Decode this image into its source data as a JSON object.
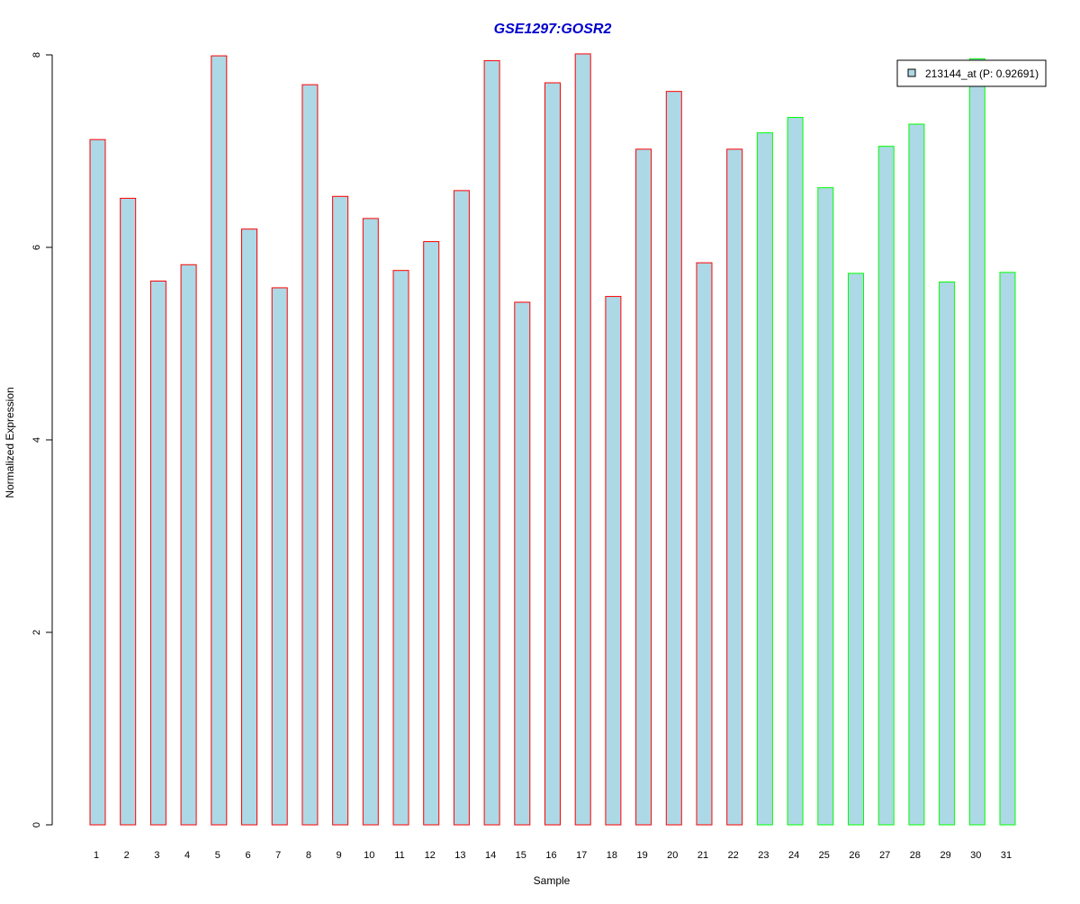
{
  "chart_data": {
    "type": "bar",
    "title": "GSE1297:GOSR2",
    "xlabel": "Sample",
    "ylabel": "Normalized Expression",
    "ylim": [
      0,
      8
    ],
    "yticks": [
      0,
      2,
      4,
      6,
      8
    ],
    "categories": [
      "1",
      "2",
      "3",
      "4",
      "5",
      "6",
      "7",
      "8",
      "9",
      "10",
      "11",
      "12",
      "13",
      "14",
      "15",
      "16",
      "17",
      "18",
      "19",
      "20",
      "21",
      "22",
      "23",
      "24",
      "25",
      "26",
      "27",
      "28",
      "29",
      "30",
      "31"
    ],
    "series": [
      {
        "name": "213144_at (P: 0.92691)",
        "values": [
          7.12,
          6.51,
          5.65,
          5.82,
          7.99,
          6.19,
          5.58,
          7.69,
          6.53,
          6.3,
          5.76,
          6.06,
          6.59,
          7.94,
          5.43,
          7.71,
          8.01,
          5.49,
          7.02,
          7.62,
          5.84,
          7.02,
          7.19,
          7.35,
          6.62,
          5.73,
          7.05,
          7.28,
          5.64,
          7.96,
          5.74
        ]
      }
    ],
    "groups": [
      1,
      1,
      1,
      1,
      1,
      1,
      1,
      1,
      1,
      1,
      1,
      1,
      1,
      1,
      1,
      1,
      1,
      1,
      1,
      1,
      1,
      1,
      2,
      2,
      2,
      2,
      2,
      2,
      2,
      2,
      2
    ],
    "colors": {
      "bar_fill": "#add8e6",
      "group1_border": "#ff0000",
      "group2_border": "#00ff00",
      "title": "#0000cd",
      "axis": "#000000"
    },
    "legend": {
      "label": "213144_at (P: 0.92691)",
      "position": "top-right"
    }
  }
}
